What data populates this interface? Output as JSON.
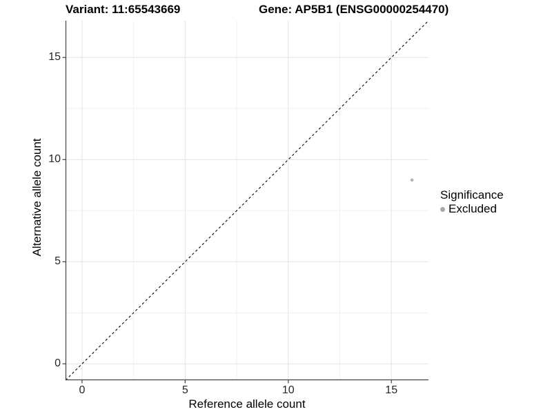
{
  "header": {
    "variant_title": "Variant: 11:65543669",
    "gene_title": "Gene: AP5B1 (ENSG00000254470)"
  },
  "chart_data": {
    "type": "scatter",
    "xlabel": "Reference allele count",
    "ylabel": "Alternative allele count",
    "xlim": [
      -0.8,
      16.8
    ],
    "ylim": [
      -0.8,
      16.8
    ],
    "x_ticks": [
      0,
      5,
      10,
      15
    ],
    "y_ticks": [
      0,
      5,
      10,
      15
    ],
    "x_minor_ticks": [
      2.5,
      7.5,
      12.5
    ],
    "y_minor_ticks": [
      2.5,
      7.5,
      12.5
    ],
    "grid": true,
    "reference_line": {
      "slope": 1,
      "intercept": 0,
      "style": "dashed",
      "color": "#000000"
    },
    "series": [
      {
        "name": "Excluded",
        "color": "#b3b3b3",
        "points": [
          {
            "x": 16,
            "y": 9
          }
        ]
      }
    ],
    "legend": {
      "title": "Significance",
      "position": "right",
      "items": [
        {
          "label": "Excluded",
          "color": "#a8a8a8"
        }
      ]
    },
    "colors": {
      "background": "#ffffff",
      "grid_major": "#e4e4e4",
      "grid_minor": "#f0f0f0",
      "axis_line": "#404040",
      "tick_text": "#262626"
    }
  }
}
